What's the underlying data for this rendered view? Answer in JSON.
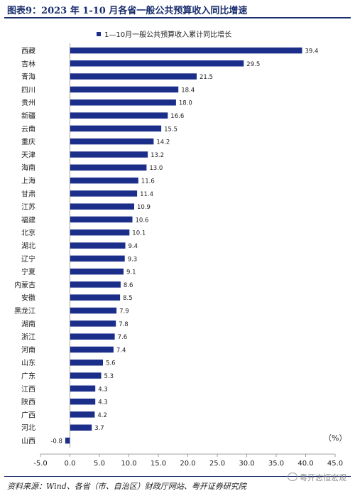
{
  "header": {
    "title": "图表9：2023 年 1-10 月各省一般公共预算收入同比增速"
  },
  "footer": {
    "source": "资料来源：Wind、各省（市、自治区）财政厅网站、粤开证券研究院",
    "watermark": "粤开志恒宏观"
  },
  "chart_data": {
    "type": "bar",
    "orientation": "horizontal",
    "title": "",
    "unit_label": "（%）",
    "xlim": [
      -5.0,
      45.0
    ],
    "xticks": [
      "-5.0",
      "0.0",
      "5.0",
      "10.0",
      "15.0",
      "20.0",
      "25.0",
      "30.0",
      "35.0",
      "40.0",
      "45.0"
    ],
    "legend": {
      "label": "1—10月一般公共预算收入累计同比增长",
      "position": "top"
    },
    "bar_color": "#1a2e8a",
    "categories": [
      "西藏",
      "吉林",
      "青海",
      "四川",
      "贵州",
      "新疆",
      "云南",
      "重庆",
      "天津",
      "海南",
      "上海",
      "甘肃",
      "江苏",
      "福建",
      "北京",
      "湖北",
      "辽宁",
      "宁夏",
      "内蒙古",
      "安徽",
      "黑龙江",
      "湖南",
      "浙江",
      "河南",
      "山东",
      "广东",
      "江西",
      "陕西",
      "广西",
      "河北",
      "山西"
    ],
    "values": [
      39.4,
      29.5,
      21.5,
      18.4,
      18.0,
      16.6,
      15.5,
      14.2,
      13.2,
      13.0,
      11.6,
      11.4,
      10.9,
      10.6,
      10.1,
      9.4,
      9.3,
      9.1,
      8.6,
      8.5,
      7.9,
      7.8,
      7.6,
      7.4,
      5.6,
      5.3,
      4.3,
      4.3,
      4.2,
      3.7,
      -0.8
    ],
    "value_labels": [
      "39.4",
      "29.5",
      "21.5",
      "18.4",
      "18.0",
      "16.6",
      "15.5",
      "14.2",
      "13.2",
      "13.0",
      "11.6",
      "11.4",
      "10.9",
      "10.6",
      "10.1",
      "9.4",
      "9.3",
      "9.1",
      "8.6",
      "8.5",
      "7.9",
      "7.8",
      "7.6",
      "7.4",
      "5.6",
      "5.3",
      "4.3",
      "4.3",
      "4.2",
      "3.7",
      "-0.8"
    ]
  }
}
